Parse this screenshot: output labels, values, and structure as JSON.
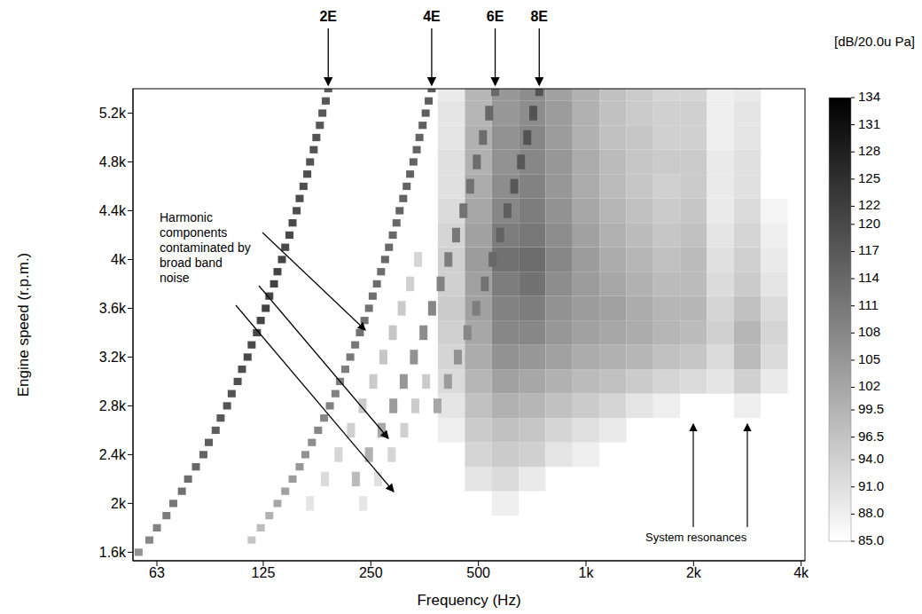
{
  "chart_data": {
    "type": "heatmap",
    "x_label": "Frequency (Hz)",
    "y_label": "Engine speed (r.p.m.)",
    "log": "x",
    "xlim": [
      54,
      4100
    ],
    "xticks": [
      63,
      125,
      250,
      500,
      {
        "value": 1000,
        "label": "1k"
      },
      {
        "value": 2000,
        "label": "2k"
      },
      {
        "value": 4000,
        "label": "4k"
      }
    ],
    "ylim": [
      1530,
      5400
    ],
    "yticks": [
      {
        "value": 1600,
        "label": "1.6k"
      },
      {
        "value": 2000,
        "label": "2k"
      },
      {
        "value": 2400,
        "label": "2.4k"
      },
      {
        "value": 2800,
        "label": "2.8k"
      },
      {
        "value": 3200,
        "label": "3.2k"
      },
      {
        "value": 3600,
        "label": "3.6k"
      },
      {
        "value": 4000,
        "label": "4k"
      },
      {
        "value": 4400,
        "label": "4.4k"
      },
      {
        "value": 4800,
        "label": "4.8k"
      },
      {
        "value": 5200,
        "label": "5.2k"
      }
    ],
    "colorbar": {
      "title": "[dB/20.0u Pa]",
      "range": [
        85,
        134
      ],
      "ticks": [
        134,
        131,
        128,
        125,
        122,
        120,
        117,
        114,
        111,
        108,
        105,
        102,
        99.5,
        96.5,
        {
          "value": 94,
          "label": "94.0"
        },
        {
          "value": 91,
          "label": "91.0"
        },
        {
          "value": 88,
          "label": "88.0"
        },
        {
          "value": 85,
          "label": "85.0"
        }
      ]
    },
    "harmonics": [
      {
        "name": "2E",
        "rpm": [
          1600,
          1700,
          1800,
          1900,
          2000,
          2100,
          2200,
          2300,
          2400,
          2500,
          2600,
          2700,
          2800,
          2900,
          3000,
          3100,
          3200,
          3300,
          3400,
          3500,
          3600,
          3700,
          3800,
          3900,
          4000,
          4100,
          4200,
          4300,
          4400,
          4500,
          4600,
          4700,
          4800,
          4900,
          5000,
          5100,
          5200,
          5300,
          5400
        ],
        "freq": [
          56,
          60,
          63,
          67,
          70,
          74,
          77,
          81,
          85,
          88,
          92,
          95,
          99,
          102,
          106,
          109,
          113,
          116,
          120,
          123,
          127,
          130,
          134,
          137,
          141,
          144,
          148,
          151,
          155,
          158,
          162,
          166,
          169,
          173,
          176,
          180,
          183,
          187,
          190
        ],
        "db": [
          106,
          108,
          109,
          110,
          111,
          112,
          113,
          114,
          115,
          116,
          116,
          117,
          118,
          118,
          119,
          119,
          120,
          120,
          120,
          121,
          121,
          121,
          121,
          121,
          121,
          120,
          120,
          120,
          119,
          119,
          119,
          119,
          118,
          118,
          118,
          117,
          117,
          117,
          116
        ]
      },
      {
        "name": "4E",
        "rpm": [
          1700,
          1800,
          1900,
          2000,
          2100,
          2200,
          2300,
          2400,
          2500,
          2600,
          2700,
          2800,
          2900,
          3000,
          3100,
          3200,
          3300,
          3400,
          3500,
          3600,
          3700,
          3800,
          3900,
          4000,
          4100,
          4200,
          4300,
          4400,
          4500,
          4600,
          4700,
          4800,
          4900,
          5000,
          5100,
          5200,
          5300,
          5400
        ],
        "freq": [
          116,
          123,
          130,
          137,
          144,
          151,
          158,
          164,
          171,
          178,
          185,
          192,
          199,
          205,
          212,
          219,
          226,
          233,
          240,
          247,
          253,
          260,
          267,
          274,
          281,
          288,
          295,
          301,
          308,
          315,
          322,
          329,
          336,
          342,
          349,
          356,
          363,
          370
        ],
        "db": [
          96,
          98,
          100,
          102,
          103,
          104,
          105,
          106,
          107,
          108,
          108,
          109,
          109,
          110,
          110,
          111,
          111,
          112,
          112,
          112,
          113,
          113,
          113,
          114,
          114,
          114,
          114,
          115,
          115,
          115,
          115,
          115,
          115,
          115,
          116,
          116,
          116,
          116
        ]
      },
      {
        "name": "6E",
        "rpm": [
          2200,
          2400,
          2600,
          2800,
          3000,
          3200,
          3400,
          3600,
          3800,
          4000,
          4200,
          4400,
          4600,
          4800,
          5000,
          5200,
          5400
        ],
        "freq": [
          227,
          247,
          268,
          289,
          309,
          330,
          351,
          371,
          392,
          412,
          433,
          454,
          474,
          495,
          515,
          536,
          557
        ],
        "db": [
          98,
          100,
          102,
          104,
          105,
          106,
          107,
          108,
          109,
          110,
          111,
          112,
          112,
          113,
          113,
          114,
          114
        ]
      },
      {
        "name": "8E",
        "rpm": [
          2800,
          3000,
          3200,
          3400,
          3600,
          3800,
          4000,
          4200,
          4400,
          4600,
          4800,
          5000,
          5200,
          5400
        ],
        "freq": [
          384,
          411,
          438,
          466,
          493,
          521,
          548,
          575,
          603,
          630,
          658,
          685,
          712,
          740
        ],
        "db": [
          102,
          104,
          106,
          108,
          110,
          112,
          114,
          115,
          116,
          117,
          117,
          118,
          118,
          118
        ]
      },
      {
        "rpm": [
          2000,
          2200,
          2400,
          2600,
          2800,
          3000,
          3200,
          3400,
          3600,
          3800,
          4000
        ],
        "freq": [
          169,
          186,
          203,
          220,
          237,
          254,
          271,
          288,
          305,
          322,
          339
        ],
        "db": [
          90,
          92,
          93,
          94,
          95,
          95,
          96,
          96,
          95,
          94,
          93
        ]
      },
      {
        "rpm": [
          2000,
          2200,
          2400,
          2600,
          2800,
          3000
        ],
        "freq": [
          238,
          262,
          286,
          310,
          333,
          357
        ],
        "db": [
          90,
          91,
          93,
          94,
          95,
          95
        ]
      }
    ],
    "broadband": {
      "freq": [
        420,
        500,
        595,
        707,
        841,
        1000,
        1189,
        1414,
        1682,
        2000,
        2378,
        2828,
        3364
      ],
      "rpm": [
        2000,
        2200,
        2400,
        2600,
        2800,
        3000,
        3200,
        3400,
        3600,
        3800,
        4000,
        4200,
        4400,
        4600,
        4800,
        5000,
        5200,
        5400
      ],
      "db": [
        [
          null,
          null,
          88,
          null,
          null,
          null,
          null,
          null,
          null,
          null,
          null,
          null,
          null
        ],
        [
          null,
          90,
          92,
          89,
          null,
          null,
          null,
          null,
          null,
          null,
          null,
          null,
          null
        ],
        [
          null,
          93,
          95,
          94,
          90,
          88,
          null,
          null,
          null,
          null,
          null,
          null,
          null
        ],
        [
          88,
          95,
          97,
          96,
          93,
          91,
          89,
          null,
          null,
          null,
          null,
          null,
          null
        ],
        [
          90,
          97,
          100,
          99,
          97,
          95,
          93,
          90,
          88,
          null,
          null,
          88,
          null
        ],
        [
          92,
          99,
          103,
          102,
          100,
          98,
          97,
          95,
          93,
          92,
          90,
          94,
          89
        ],
        [
          93,
          101,
          106,
          105,
          103,
          101,
          100,
          99,
          97,
          96,
          92,
          98,
          92
        ],
        [
          94,
          102,
          108,
          108,
          105,
          103,
          102,
          101,
          99,
          98,
          94,
          99,
          93
        ],
        [
          95,
          103,
          109,
          110,
          106,
          104,
          103,
          101,
          99,
          99,
          93,
          97,
          92
        ],
        [
          94,
          103,
          110,
          112,
          107,
          104,
          102,
          100,
          98,
          98,
          92,
          95,
          90
        ],
        [
          94,
          104,
          112,
          113,
          108,
          104,
          101,
          99,
          97,
          98,
          91,
          94,
          89
        ],
        [
          93,
          103,
          110,
          111,
          107,
          103,
          100,
          98,
          96,
          97,
          90,
          93,
          88
        ],
        [
          92,
          102,
          108,
          110,
          106,
          102,
          99,
          97,
          95,
          96,
          89,
          92,
          87
        ],
        [
          91,
          101,
          107,
          109,
          105,
          101,
          98,
          96,
          94,
          95,
          89,
          91,
          null
        ],
        [
          91,
          100,
          106,
          108,
          105,
          101,
          98,
          96,
          95,
          95,
          89,
          91,
          null
        ],
        [
          90,
          100,
          106,
          108,
          104,
          100,
          97,
          96,
          94,
          94,
          88,
          90,
          null
        ],
        [
          90,
          99,
          105,
          107,
          104,
          100,
          97,
          95,
          94,
          94,
          88,
          90,
          null
        ],
        [
          89,
          99,
          105,
          107,
          103,
          100,
          97,
          95,
          93,
          93,
          88,
          89,
          null
        ]
      ]
    },
    "annotations": [
      {
        "text": "Harmonic components contaminated by broad band noise"
      },
      {
        "text": "System resonances"
      }
    ]
  }
}
